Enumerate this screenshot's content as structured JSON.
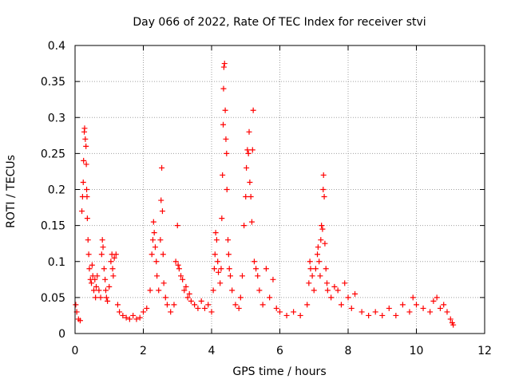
{
  "chart_data": {
    "type": "scatter",
    "title": "Day 066 of 2022, Rate Of TEC Index for receiver stvi",
    "xlabel": "GPS time / hours",
    "ylabel": "ROTI / TECUs",
    "xlim": [
      0,
      12
    ],
    "ylim": [
      0,
      0.4
    ],
    "xticks": [
      0,
      2,
      4,
      6,
      8,
      10,
      12
    ],
    "xtick_labels": [
      "0",
      "2",
      "4",
      "6",
      "8",
      "10",
      "12"
    ],
    "yticks": [
      0,
      0.05,
      0.1,
      0.15,
      0.2,
      0.25,
      0.3,
      0.35,
      0.4
    ],
    "ytick_labels": [
      "0",
      "0.05",
      "0.1",
      "0.15",
      "0.2",
      "0.25",
      "0.3",
      "0.35",
      "0.4"
    ],
    "grid": true,
    "marker": "+",
    "color": "#ff0000",
    "series": [
      {
        "name": "ROTI",
        "points": [
          [
            0.02,
            0.04
          ],
          [
            0.05,
            0.03
          ],
          [
            0.1,
            0.02
          ],
          [
            0.15,
            0.018
          ],
          [
            0.2,
            0.17
          ],
          [
            0.22,
            0.19
          ],
          [
            0.24,
            0.21
          ],
          [
            0.25,
            0.24
          ],
          [
            0.27,
            0.28
          ],
          [
            0.28,
            0.285
          ],
          [
            0.3,
            0.27
          ],
          [
            0.32,
            0.26
          ],
          [
            0.33,
            0.235
          ],
          [
            0.34,
            0.2
          ],
          [
            0.35,
            0.19
          ],
          [
            0.36,
            0.16
          ],
          [
            0.38,
            0.13
          ],
          [
            0.4,
            0.11
          ],
          [
            0.42,
            0.09
          ],
          [
            0.45,
            0.075
          ],
          [
            0.48,
            0.07
          ],
          [
            0.5,
            0.095
          ],
          [
            0.52,
            0.08
          ],
          [
            0.55,
            0.06
          ],
          [
            0.58,
            0.075
          ],
          [
            0.6,
            0.05
          ],
          [
            0.62,
            0.065
          ],
          [
            0.65,
            0.08
          ],
          [
            0.7,
            0.06
          ],
          [
            0.75,
            0.05
          ],
          [
            0.78,
            0.11
          ],
          [
            0.8,
            0.13
          ],
          [
            0.82,
            0.12
          ],
          [
            0.85,
            0.09
          ],
          [
            0.88,
            0.075
          ],
          [
            0.9,
            0.06
          ],
          [
            0.92,
            0.05
          ],
          [
            0.95,
            0.045
          ],
          [
            1.0,
            0.065
          ],
          [
            1.05,
            0.1
          ],
          [
            1.08,
            0.11
          ],
          [
            1.1,
            0.09
          ],
          [
            1.12,
            0.08
          ],
          [
            1.15,
            0.105
          ],
          [
            1.2,
            0.11
          ],
          [
            1.25,
            0.04
          ],
          [
            1.3,
            0.03
          ],
          [
            1.4,
            0.025
          ],
          [
            1.5,
            0.022
          ],
          [
            1.6,
            0.02
          ],
          [
            1.7,
            0.025
          ],
          [
            1.8,
            0.02
          ],
          [
            1.9,
            0.022
          ],
          [
            2.0,
            0.03
          ],
          [
            2.1,
            0.035
          ],
          [
            2.2,
            0.06
          ],
          [
            2.25,
            0.11
          ],
          [
            2.28,
            0.13
          ],
          [
            2.3,
            0.155
          ],
          [
            2.32,
            0.14
          ],
          [
            2.35,
            0.12
          ],
          [
            2.38,
            0.1
          ],
          [
            2.4,
            0.08
          ],
          [
            2.45,
            0.06
          ],
          [
            2.5,
            0.13
          ],
          [
            2.52,
            0.185
          ],
          [
            2.54,
            0.23
          ],
          [
            2.56,
            0.17
          ],
          [
            2.58,
            0.11
          ],
          [
            2.6,
            0.07
          ],
          [
            2.65,
            0.05
          ],
          [
            2.7,
            0.04
          ],
          [
            2.8,
            0.03
          ],
          [
            2.9,
            0.04
          ],
          [
            2.95,
            0.1
          ],
          [
            3.0,
            0.15
          ],
          [
            3.02,
            0.095
          ],
          [
            3.05,
            0.09
          ],
          [
            3.1,
            0.08
          ],
          [
            3.15,
            0.075
          ],
          [
            3.2,
            0.06
          ],
          [
            3.25,
            0.065
          ],
          [
            3.3,
            0.05
          ],
          [
            3.35,
            0.055
          ],
          [
            3.4,
            0.045
          ],
          [
            3.5,
            0.04
          ],
          [
            3.6,
            0.035
          ],
          [
            3.7,
            0.045
          ],
          [
            3.8,
            0.035
          ],
          [
            3.9,
            0.04
          ],
          [
            4.0,
            0.03
          ],
          [
            4.05,
            0.06
          ],
          [
            4.08,
            0.09
          ],
          [
            4.1,
            0.11
          ],
          [
            4.12,
            0.14
          ],
          [
            4.15,
            0.13
          ],
          [
            4.18,
            0.1
          ],
          [
            4.2,
            0.085
          ],
          [
            4.25,
            0.07
          ],
          [
            4.28,
            0.09
          ],
          [
            4.3,
            0.16
          ],
          [
            4.32,
            0.22
          ],
          [
            4.34,
            0.29
          ],
          [
            4.35,
            0.34
          ],
          [
            4.36,
            0.37
          ],
          [
            4.38,
            0.375
          ],
          [
            4.4,
            0.31
          ],
          [
            4.42,
            0.27
          ],
          [
            4.44,
            0.25
          ],
          [
            4.45,
            0.2
          ],
          [
            4.48,
            0.13
          ],
          [
            4.5,
            0.11
          ],
          [
            4.52,
            0.09
          ],
          [
            4.55,
            0.08
          ],
          [
            4.6,
            0.06
          ],
          [
            4.7,
            0.04
          ],
          [
            4.8,
            0.035
          ],
          [
            4.85,
            0.05
          ],
          [
            4.9,
            0.08
          ],
          [
            4.95,
            0.15
          ],
          [
            5.0,
            0.19
          ],
          [
            5.02,
            0.23
          ],
          [
            5.05,
            0.255
          ],
          [
            5.08,
            0.25
          ],
          [
            5.1,
            0.28
          ],
          [
            5.12,
            0.21
          ],
          [
            5.15,
            0.19
          ],
          [
            5.18,
            0.155
          ],
          [
            5.2,
            0.255
          ],
          [
            5.22,
            0.31
          ],
          [
            5.25,
            0.1
          ],
          [
            5.3,
            0.09
          ],
          [
            5.35,
            0.08
          ],
          [
            5.4,
            0.06
          ],
          [
            5.5,
            0.04
          ],
          [
            5.6,
            0.09
          ],
          [
            5.7,
            0.05
          ],
          [
            5.8,
            0.075
          ],
          [
            5.9,
            0.035
          ],
          [
            6.0,
            0.03
          ],
          [
            6.2,
            0.025
          ],
          [
            6.4,
            0.03
          ],
          [
            6.6,
            0.025
          ],
          [
            6.8,
            0.04
          ],
          [
            6.85,
            0.07
          ],
          [
            6.88,
            0.1
          ],
          [
            6.9,
            0.09
          ],
          [
            6.95,
            0.08
          ],
          [
            7.0,
            0.06
          ],
          [
            7.05,
            0.09
          ],
          [
            7.1,
            0.11
          ],
          [
            7.12,
            0.12
          ],
          [
            7.15,
            0.1
          ],
          [
            7.18,
            0.08
          ],
          [
            7.2,
            0.13
          ],
          [
            7.22,
            0.15
          ],
          [
            7.25,
            0.145
          ],
          [
            7.27,
            0.2
          ],
          [
            7.28,
            0.22
          ],
          [
            7.3,
            0.19
          ],
          [
            7.32,
            0.125
          ],
          [
            7.35,
            0.09
          ],
          [
            7.38,
            0.07
          ],
          [
            7.4,
            0.06
          ],
          [
            7.5,
            0.05
          ],
          [
            7.6,
            0.065
          ],
          [
            7.7,
            0.06
          ],
          [
            7.8,
            0.04
          ],
          [
            7.9,
            0.07
          ],
          [
            8.0,
            0.05
          ],
          [
            8.1,
            0.035
          ],
          [
            8.2,
            0.055
          ],
          [
            8.4,
            0.03
          ],
          [
            8.6,
            0.025
          ],
          [
            8.8,
            0.03
          ],
          [
            9.0,
            0.025
          ],
          [
            9.2,
            0.035
          ],
          [
            9.4,
            0.025
          ],
          [
            9.6,
            0.04
          ],
          [
            9.8,
            0.03
          ],
          [
            9.9,
            0.05
          ],
          [
            10.0,
            0.04
          ],
          [
            10.2,
            0.035
          ],
          [
            10.4,
            0.03
          ],
          [
            10.5,
            0.045
          ],
          [
            10.6,
            0.05
          ],
          [
            10.7,
            0.035
          ],
          [
            10.8,
            0.04
          ],
          [
            10.9,
            0.03
          ],
          [
            11.0,
            0.02
          ],
          [
            11.05,
            0.015
          ],
          [
            11.08,
            0.012
          ]
        ]
      }
    ]
  }
}
